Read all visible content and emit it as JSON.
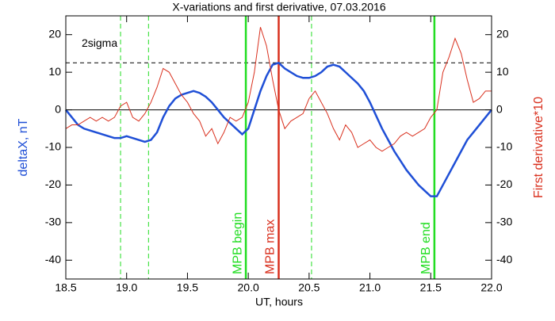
{
  "chart_data": {
    "type": "line",
    "title": "X-variations and first derivative, 07.03.2016",
    "x_label": "UT, hours",
    "y_label": "deltaX, nT",
    "y2_label": "First derivative*10",
    "x": [
      18.5,
      18.55,
      18.6,
      18.65,
      18.7,
      18.75,
      18.8,
      18.85,
      18.9,
      18.95,
      19.0,
      19.05,
      19.1,
      19.15,
      19.2,
      19.25,
      19.3,
      19.35,
      19.4,
      19.45,
      19.5,
      19.55,
      19.6,
      19.65,
      19.7,
      19.75,
      19.8,
      19.85,
      19.9,
      19.95,
      20.0,
      20.05,
      20.1,
      20.15,
      20.2,
      20.25,
      20.3,
      20.35,
      20.4,
      20.45,
      20.5,
      20.55,
      20.6,
      20.65,
      20.7,
      20.75,
      20.8,
      20.85,
      20.9,
      20.95,
      21.0,
      21.05,
      21.1,
      21.15,
      21.2,
      21.25,
      21.3,
      21.35,
      21.4,
      21.45,
      21.5,
      21.55,
      21.6,
      21.65,
      21.7,
      21.75,
      21.8,
      21.85,
      21.9,
      21.95,
      22.0
    ],
    "series": [
      {
        "name": "deltaX",
        "color": "#1f4fd6",
        "axis": "y",
        "values": [
          0,
          -2,
          -4,
          -5,
          -5.5,
          -6,
          -6.5,
          -7,
          -7.5,
          -7.5,
          -7,
          -7.5,
          -8,
          -8.5,
          -8,
          -6,
          -2,
          1,
          3,
          4,
          4.5,
          5,
          4.5,
          3.5,
          2,
          0,
          -2,
          -3.5,
          -5,
          -6.5,
          -5,
          0,
          5,
          9,
          12,
          12.5,
          11,
          10,
          9,
          8.5,
          8.5,
          9,
          10,
          11.5,
          12,
          11.5,
          10,
          8.5,
          7,
          5,
          2,
          -1.5,
          -5,
          -8,
          -11,
          -13.5,
          -16,
          -18,
          -20,
          -21.5,
          -23,
          -23,
          -20,
          -17,
          -14,
          -11,
          -8,
          -6,
          -4,
          -2,
          0
        ]
      },
      {
        "name": "First derivative*10",
        "color": "#d9301e",
        "axis": "y2",
        "values": [
          -5,
          -4,
          -4,
          -3,
          -2,
          -3,
          -2,
          -3,
          -2,
          1,
          2,
          -2,
          -3,
          -1,
          2,
          6,
          11,
          10,
          7,
          4,
          2,
          -1,
          -3,
          -7,
          -5,
          -9,
          -6,
          -2,
          -3,
          -2,
          2,
          10,
          22,
          17,
          8,
          0,
          -5,
          -3,
          -2,
          -1,
          3,
          5,
          2,
          -1,
          -5,
          -8,
          -4,
          -6,
          -10,
          -9,
          -8,
          -10,
          -11,
          -10,
          -9,
          -7,
          -6,
          -7,
          -6,
          -5,
          -2,
          0,
          10,
          14,
          19,
          15,
          8,
          2,
          3,
          5,
          5
        ]
      }
    ],
    "xlim": [
      18.5,
      22.0
    ],
    "xticks": [
      18.5,
      {
        "value": 19.0,
        "label": "19.0"
      },
      19.5,
      {
        "value": 20.0,
        "label": "20.0"
      },
      20.5,
      {
        "value": 21.0,
        "label": "21.0"
      },
      21.5,
      {
        "value": 22.0,
        "label": "22.0"
      }
    ],
    "ylim": [
      -45,
      25
    ],
    "yticks": [
      -40,
      -30,
      -20,
      -10,
      0,
      10,
      20
    ],
    "y2lim": [
      -45,
      25
    ],
    "y2ticks": [
      -40,
      -30,
      -20,
      -10,
      0,
      10,
      20
    ],
    "vlines": [
      {
        "x": 18.95,
        "color": "#22dd22",
        "style": "dashed"
      },
      {
        "x": 19.18,
        "color": "#22dd22",
        "style": "dashed"
      },
      {
        "x": 19.98,
        "color": "#22dd22",
        "style": "solid",
        "label": "MPB begin"
      },
      {
        "x": 20.25,
        "color": "#d9301e",
        "style": "solid",
        "label": "MPB max"
      },
      {
        "x": 20.52,
        "color": "#22dd22",
        "style": "dashed"
      },
      {
        "x": 21.53,
        "color": "#22dd22",
        "style": "solid",
        "label": "MPB end"
      }
    ],
    "hlines": [
      {
        "y": 0,
        "color": "#000000",
        "style": "solid"
      },
      {
        "y": 12.5,
        "color": "#000000",
        "style": "dashed",
        "label": "2sigma"
      }
    ]
  }
}
